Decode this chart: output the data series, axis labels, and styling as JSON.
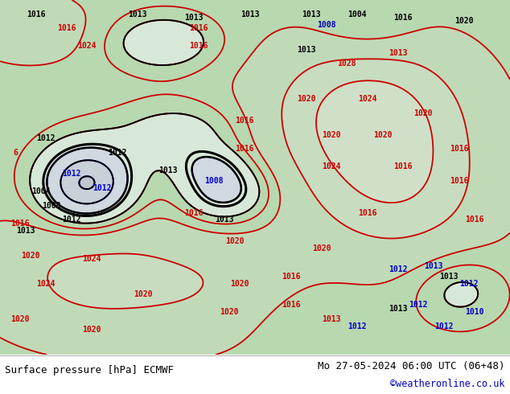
{
  "title_left": "Surface pressure [hPa] ECMWF",
  "title_right": "Mo 27-05-2024 06:00 UTC (06+48)",
  "copyright": "©weatheronline.co.uk",
  "fig_width": 6.34,
  "fig_height": 4.9,
  "dpi": 100,
  "title_fontsize": 9.0,
  "copyright_fontsize": 8.5,
  "copyright_color": "#0000cc",
  "black": "#000000",
  "red": "#cc0000",
  "blue": "#0000cc",
  "sea_color": "#c8c8c8",
  "land_green": "#a8d4a8",
  "land_light": "#e8f4e8",
  "bottom_bg": "#ffffff"
}
